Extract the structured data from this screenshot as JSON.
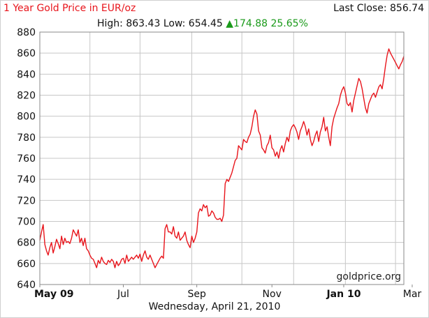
{
  "header": {
    "title": "1 Year Gold Price in EUR/oz",
    "last_close_label": "Last Close:",
    "last_close_value": "856.74",
    "high_label": "High:",
    "high_value": "863.43",
    "low_label": "Low:",
    "low_value": "654.45",
    "change_value": "174.88",
    "change_percent": "25.65%"
  },
  "footer": {
    "date": "Wednesday, April 21, 2010",
    "watermark": "goldprice.org"
  },
  "colors": {
    "line": "#e8141b",
    "title": "#e8141b",
    "change_up": "#1a9a1a",
    "grid": "#c7c7c7"
  },
  "chart_data": {
    "type": "line",
    "title": "1 Year Gold Price in EUR/oz",
    "xlabel": "",
    "ylabel": "",
    "ylim": [
      640,
      880
    ],
    "yticks": [
      640,
      660,
      680,
      700,
      720,
      740,
      760,
      780,
      800,
      820,
      840,
      860,
      880
    ],
    "grid": true,
    "x_tick_labels": [
      {
        "label": "May 09",
        "bold": true,
        "index": 0
      },
      {
        "label": "Jul",
        "bold": false,
        "index": 50
      },
      {
        "label": "Sep",
        "bold": false,
        "index": 94
      },
      {
        "label": "Nov",
        "bold": false,
        "index": 139
      },
      {
        "label": "Jan 10",
        "bold": true,
        "index": 182
      },
      {
        "label": "Mar",
        "bold": false,
        "index": 223
      }
    ],
    "x_grid_indices": [
      0,
      30,
      60,
      91,
      121,
      152,
      183,
      213,
      244
    ],
    "series": [
      {
        "values": [
          682,
          690,
          697,
          678,
          672,
          668,
          675,
          680,
          670,
          676,
          683,
          679,
          674,
          686,
          678,
          684,
          680,
          681,
          679,
          684,
          692,
          689,
          686,
          692,
          680,
          684,
          677,
          684,
          674,
          672,
          668,
          665,
          664,
          660,
          656,
          663,
          660,
          666,
          662,
          660,
          659,
          663,
          661,
          664,
          662,
          656,
          662,
          658,
          660,
          664,
          665,
          660,
          668,
          662,
          664,
          666,
          664,
          666,
          668,
          665,
          669,
          662,
          668,
          672,
          666,
          664,
          668,
          664,
          660,
          656,
          659,
          662,
          665,
          667,
          665,
          693,
          697,
          690,
          690,
          688,
          695,
          686,
          684,
          690,
          682,
          684,
          686,
          690,
          682,
          678,
          675,
          686,
          680,
          684,
          690,
          708,
          712,
          710,
          716,
          713,
          715,
          705,
          706,
          710,
          708,
          704,
          702,
          702,
          703,
          700,
          706,
          736,
          740,
          738,
          742,
          746,
          752,
          758,
          760,
          772,
          770,
          768,
          778,
          776,
          775,
          780,
          783,
          790,
          800,
          806,
          802,
          786,
          782,
          770,
          768,
          765,
          772,
          775,
          782,
          770,
          768,
          762,
          766,
          760,
          768,
          772,
          766,
          774,
          780,
          776,
          786,
          790,
          792,
          789,
          785,
          778,
          786,
          790,
          795,
          790,
          782,
          788,
          778,
          772,
          776,
          782,
          786,
          776,
          785,
          790,
          799,
          786,
          790,
          780,
          772,
          790,
          798,
          803,
          808,
          812,
          820,
          825,
          828,
          822,
          812,
          810,
          813,
          804,
          815,
          822,
          829,
          836,
          833,
          826,
          817,
          808,
          803,
          812,
          816,
          820,
          822,
          818,
          823,
          828,
          830,
          826,
          836,
          848,
          858,
          864,
          860,
          857,
          854,
          851,
          848,
          845,
          849,
          852,
          857
        ]
      }
    ]
  }
}
